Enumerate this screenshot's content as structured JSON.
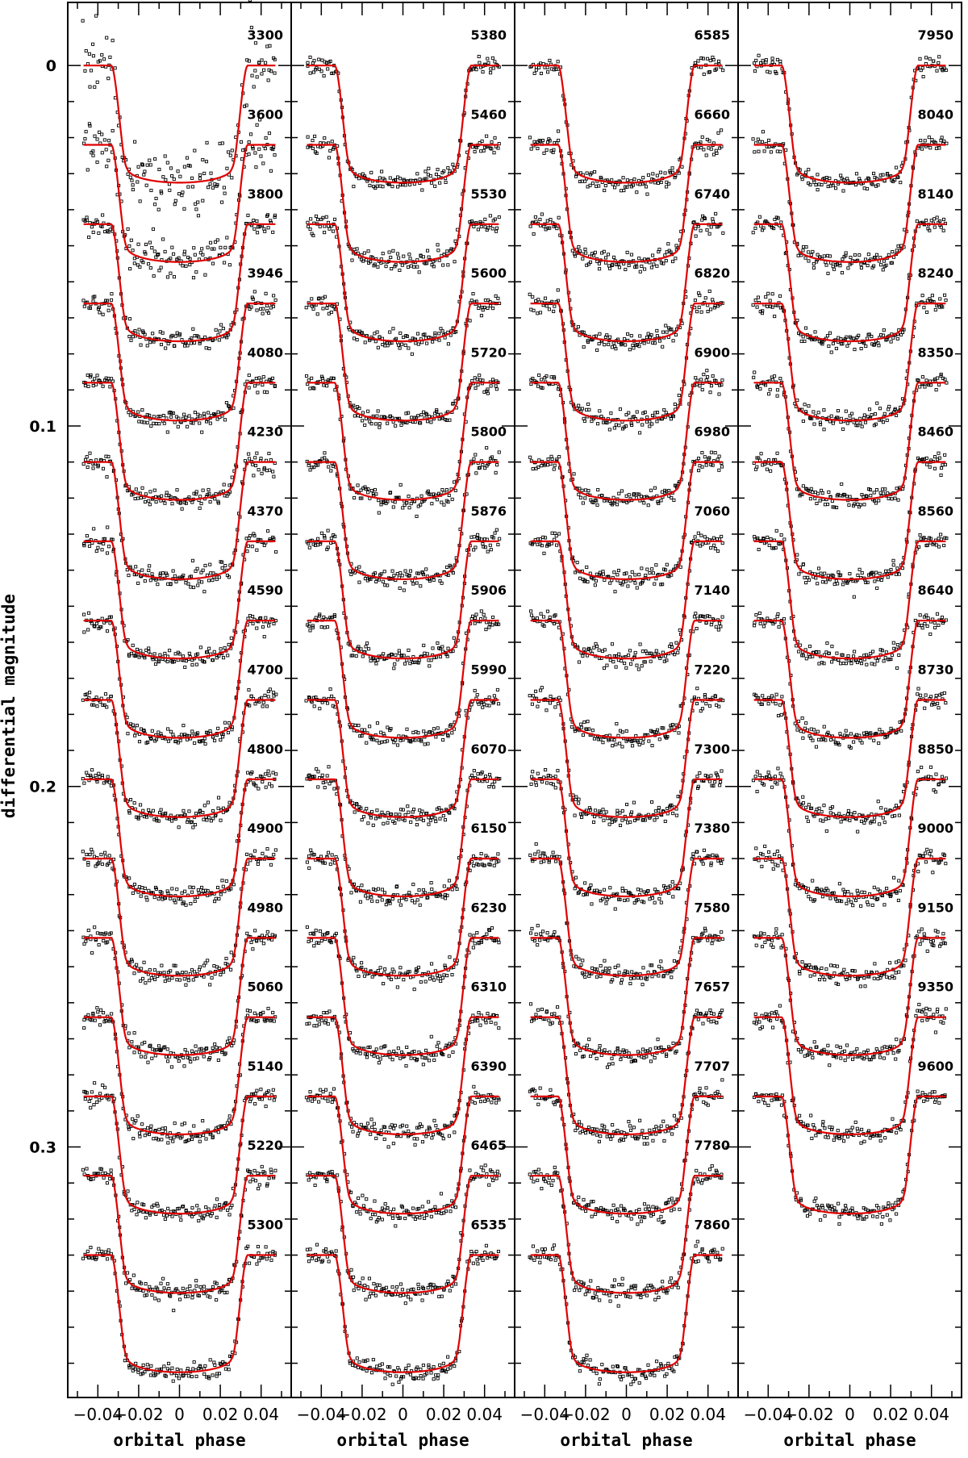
{
  "chart_data": {
    "type": "line",
    "ylabel": "differential magnitude",
    "xlabel": "orbital phase",
    "xlim": [
      -0.05,
      0.05
    ],
    "ylim": [
      -0.0175,
      0.3695
    ],
    "y_inverted": true,
    "yticks": [
      0,
      0.1,
      0.2,
      0.3
    ],
    "ytick_labels": [
      "0",
      "0.1",
      "0.2",
      "0.3"
    ],
    "xticks": [
      -0.04,
      -0.02,
      0,
      0.02,
      0.04
    ],
    "xtick_labels": [
      "−0.04",
      "−0.02",
      "0",
      "0.02",
      "0.04"
    ],
    "offset_step": 0.022,
    "transit_depth": 0.0325,
    "colors": {
      "model": "#e00000",
      "points": "#000000",
      "axes": "#000000"
    },
    "panels": [
      {
        "xlabel": "orbital phase",
        "wavelengths": [
          "3300",
          "3600",
          "3800",
          "3946",
          "4080",
          "4230",
          "4370",
          "4590",
          "4700",
          "4800",
          "4900",
          "4980",
          "5060",
          "5140",
          "5220",
          "5300"
        ]
      },
      {
        "xlabel": "orbital phase",
        "wavelengths": [
          "5380",
          "5460",
          "5530",
          "5600",
          "5720",
          "5800",
          "5876",
          "5906",
          "5990",
          "6070",
          "6150",
          "6230",
          "6310",
          "6390",
          "6465",
          "6535"
        ]
      },
      {
        "xlabel": "orbital phase",
        "wavelengths": [
          "6585",
          "6660",
          "6740",
          "6820",
          "6900",
          "6980",
          "7060",
          "7140",
          "7220",
          "7300",
          "7380",
          "7580",
          "7657",
          "7707",
          "7780",
          "7860"
        ]
      },
      {
        "xlabel": "orbital phase",
        "wavelengths": [
          "7950",
          "8040",
          "8140",
          "8240",
          "8350",
          "8460",
          "8560",
          "8640",
          "8730",
          "8850",
          "9000",
          "9150",
          "9350",
          "9600"
        ]
      }
    ]
  }
}
